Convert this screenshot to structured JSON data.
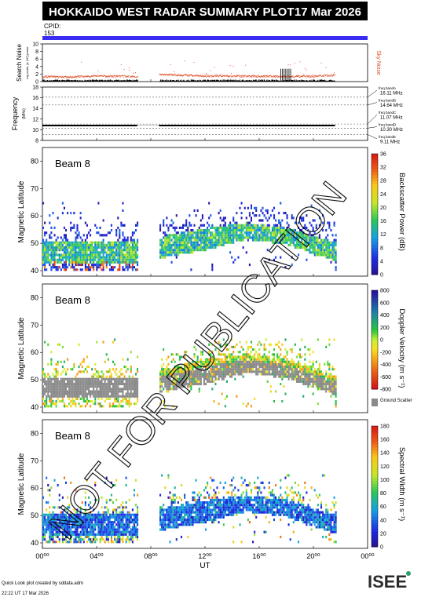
{
  "header": {
    "title": "HOKKAIDO WEST RADAR SUMMARY PLOT",
    "date": "17 Mar 2026",
    "cpid_label": "CPID:",
    "cpid_value": "153"
  },
  "colors": {
    "header_bg": "#000000",
    "cpid_bar": "#3a2cf0",
    "sky_noise": "#e0502a",
    "search_noise": "#000000",
    "ground_scatter": "#8a8a8a",
    "watermark": "#000000"
  },
  "noise_panel": {
    "ylabel": "Search Noise",
    "ylabel_sub": "log scale, [x 10²] power",
    "right_label": "Sky Noise",
    "yticks": [
      "0",
      "2",
      "4",
      "6",
      "8",
      "10"
    ]
  },
  "freq_panel": {
    "ylabel": "Frequency",
    "ylabel_unit": "(MHz)",
    "yticks": [
      "8",
      "10",
      "12",
      "14",
      "16",
      "18"
    ],
    "bands": [
      {
        "name": "freq bandA",
        "value": "16.11 MHz"
      },
      {
        "name": "freq bandB",
        "value": "14.64 MHz"
      },
      {
        "name": "freq bandC",
        "value": "11.07 MHz"
      },
      {
        "name": "freq bandD",
        "value": "10.30 MHz"
      },
      {
        "name": "freq bandE",
        "value": "9.11 MHz"
      }
    ]
  },
  "panels": [
    {
      "beam_label": "Beam 8",
      "ylabel": "Magnetic Latitude",
      "yticks": [
        "40",
        "50",
        "60",
        "70",
        "80"
      ],
      "colorbar_title": "Backscatter Power (dB)",
      "colorbar_ticks": [
        "0",
        "4",
        "8",
        "12",
        "16",
        "20",
        "24",
        "28",
        "32",
        "36"
      ]
    },
    {
      "beam_label": "Beam 8",
      "ylabel": "Magnetic Latitude",
      "yticks": [
        "40",
        "50",
        "60",
        "70",
        "80"
      ],
      "colorbar_title": "Doppler Velocity (m s⁻¹)",
      "colorbar_ticks": [
        "800",
        "600",
        "400",
        "200",
        "0",
        "-200",
        "-400",
        "-600",
        "-800"
      ],
      "ground_scatter_label": "Ground Scatter"
    },
    {
      "beam_label": "Beam 8",
      "ylabel": "Magnetic Latitude",
      "yticks": [
        "40",
        "50",
        "60",
        "70",
        "80"
      ],
      "colorbar_title": "Spectral Width (m s⁻¹)",
      "colorbar_ticks": [
        "0",
        "20",
        "40",
        "60",
        "80",
        "100",
        "120",
        "140",
        "160",
        "180"
      ]
    }
  ],
  "xaxis": {
    "label": "UT",
    "ticks": [
      "00⁰⁰",
      "04⁰⁰",
      "08⁰⁰",
      "12⁰⁰",
      "16⁰⁰",
      "20⁰⁰",
      "00⁰⁰"
    ]
  },
  "footer": {
    "line1": "Quick Look plot created by sddata.adm",
    "line2": "22:22 UT 17 Mar 2026",
    "logo_text": "ISEE"
  },
  "watermark": "NOT FOR PUBLICATION",
  "chart_data": [
    {
      "type": "line",
      "x_unit": "UT hour",
      "xlim": [
        0,
        24
      ],
      "ylim": [
        0,
        10
      ],
      "series": [
        {
          "name": "Sky Noise",
          "x": [
            0,
            2,
            4,
            6,
            7,
            8.6,
            12,
            16,
            20,
            21.5
          ],
          "y": [
            1.4,
            1.3,
            1.6,
            1.5,
            1.4,
            2.0,
            1.6,
            1.5,
            1.5,
            1.8
          ]
        },
        {
          "name": "Search Noise",
          "x": [
            0,
            4,
            7,
            8.6,
            12,
            16,
            18,
            20,
            21.5
          ],
          "y": [
            0.3,
            0.3,
            0.3,
            0.3,
            0.3,
            0.3,
            2.4,
            0.3,
            0.3
          ]
        }
      ]
    },
    {
      "type": "line",
      "x_unit": "UT hour",
      "xlim": [
        0,
        24
      ],
      "ylim": [
        8,
        18
      ],
      "series": [
        {
          "name": "Frequency",
          "x": [
            0,
            7,
            8.6,
            21.5
          ],
          "y": [
            10.8,
            10.8,
            10.8,
            10.8
          ]
        }
      ]
    },
    {
      "type": "heatmap",
      "parameter": "Backscatter Power",
      "unit": "dB",
      "zlim": [
        0,
        36
      ],
      "xlim": [
        0,
        24
      ],
      "ylim": [
        38,
        85
      ],
      "data_intervals_ut": [
        [
          0,
          7.0
        ],
        [
          8.6,
          21.6
        ]
      ],
      "main_band": [
        {
          "x": 0,
          "low": 42,
          "high": 50
        },
        {
          "x": 7,
          "low": 42,
          "high": 50
        },
        {
          "x": 8.6,
          "low": 44,
          "high": 52
        },
        {
          "x": 12,
          "low": 47,
          "high": 55
        },
        {
          "x": 15,
          "low": 51,
          "high": 57
        },
        {
          "x": 18,
          "low": 49,
          "high": 55
        },
        {
          "x": 21.5,
          "low": 43,
          "high": 50
        }
      ]
    },
    {
      "type": "heatmap",
      "parameter": "Doppler Velocity",
      "unit": "m s-1",
      "zlim": [
        -800,
        800
      ],
      "xlim": [
        0,
        24
      ],
      "ylim": [
        38,
        85
      ],
      "data_intervals_ut": [
        [
          0,
          7.0
        ],
        [
          8.6,
          21.6
        ]
      ],
      "main_band": [
        {
          "x": 0,
          "low": 43,
          "high": 50
        },
        {
          "x": 7,
          "low": 43,
          "high": 50
        },
        {
          "x": 8.6,
          "low": 45,
          "high": 53
        },
        {
          "x": 12,
          "low": 48,
          "high": 57
        },
        {
          "x": 15,
          "low": 52,
          "high": 59
        },
        {
          "x": 18,
          "low": 50,
          "high": 57
        },
        {
          "x": 21.5,
          "low": 44,
          "high": 51
        }
      ]
    },
    {
      "type": "heatmap",
      "parameter": "Spectral Width",
      "unit": "m s-1",
      "zlim": [
        0,
        180
      ],
      "xlim": [
        0,
        24
      ],
      "ylim": [
        38,
        85
      ],
      "data_intervals_ut": [
        [
          0,
          7.0
        ],
        [
          8.6,
          21.6
        ]
      ],
      "main_band": [
        {
          "x": 0,
          "low": 42,
          "high": 50
        },
        {
          "x": 7,
          "low": 42,
          "high": 50
        },
        {
          "x": 8.6,
          "low": 44,
          "high": 52
        },
        {
          "x": 12,
          "low": 47,
          "high": 55
        },
        {
          "x": 15,
          "low": 51,
          "high": 57
        },
        {
          "x": 18,
          "low": 49,
          "high": 55
        },
        {
          "x": 21.5,
          "low": 43,
          "high": 50
        }
      ]
    }
  ]
}
